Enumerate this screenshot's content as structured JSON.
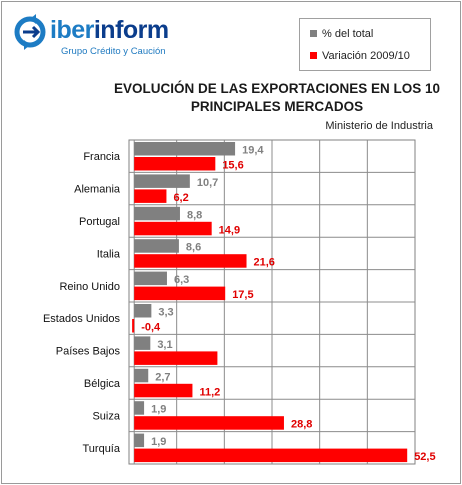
{
  "brand": {
    "name_light": "iber",
    "name_bold": "inform",
    "tagline": "Grupo Crédito y Caución",
    "colors": {
      "dark": "#0b3d8c",
      "light": "#1d7cc4"
    }
  },
  "chart_data": {
    "type": "bar",
    "orientation": "horizontal",
    "title_line1": "EVOLUCIÓN DE LAS EXPORTACIONES EN LOS 10",
    "title_line2": "PRINCIPALES MERCADOS",
    "subtitle": "Ministerio de Industria",
    "categories": [
      "Francia",
      "Alemania",
      "Portugal",
      "Italia",
      "Reino Unido",
      "Estados Unidos",
      "Países Bajos",
      "Bélgica",
      "Suiza",
      "Turquía"
    ],
    "series": [
      {
        "name": "% del total",
        "color": "#808080",
        "label_color": "#808080",
        "values": [
          19.4,
          10.7,
          8.8,
          8.6,
          6.3,
          3.3,
          3.1,
          2.7,
          1.9,
          1.9
        ],
        "labels": [
          "19,4",
          "10,7",
          "8,8",
          "8,6",
          "6,3",
          "3,3",
          "3,1",
          "2,7",
          "1,9",
          "1,9"
        ]
      },
      {
        "name": "Variación 2009/10",
        "color": "#ff0000",
        "label_color": "#e00000",
        "values": [
          15.6,
          6.2,
          14.9,
          21.6,
          17.5,
          -0.4,
          16.0,
          11.2,
          28.8,
          52.5
        ],
        "labels": [
          "15,6",
          "6,2",
          "14,9",
          "21,6",
          "17,5",
          "-0,4",
          "",
          "11,2",
          "28,8",
          "52,5"
        ]
      }
    ],
    "xlim": [
      -1,
      54
    ],
    "legend_position": "top-right",
    "grid": true
  }
}
